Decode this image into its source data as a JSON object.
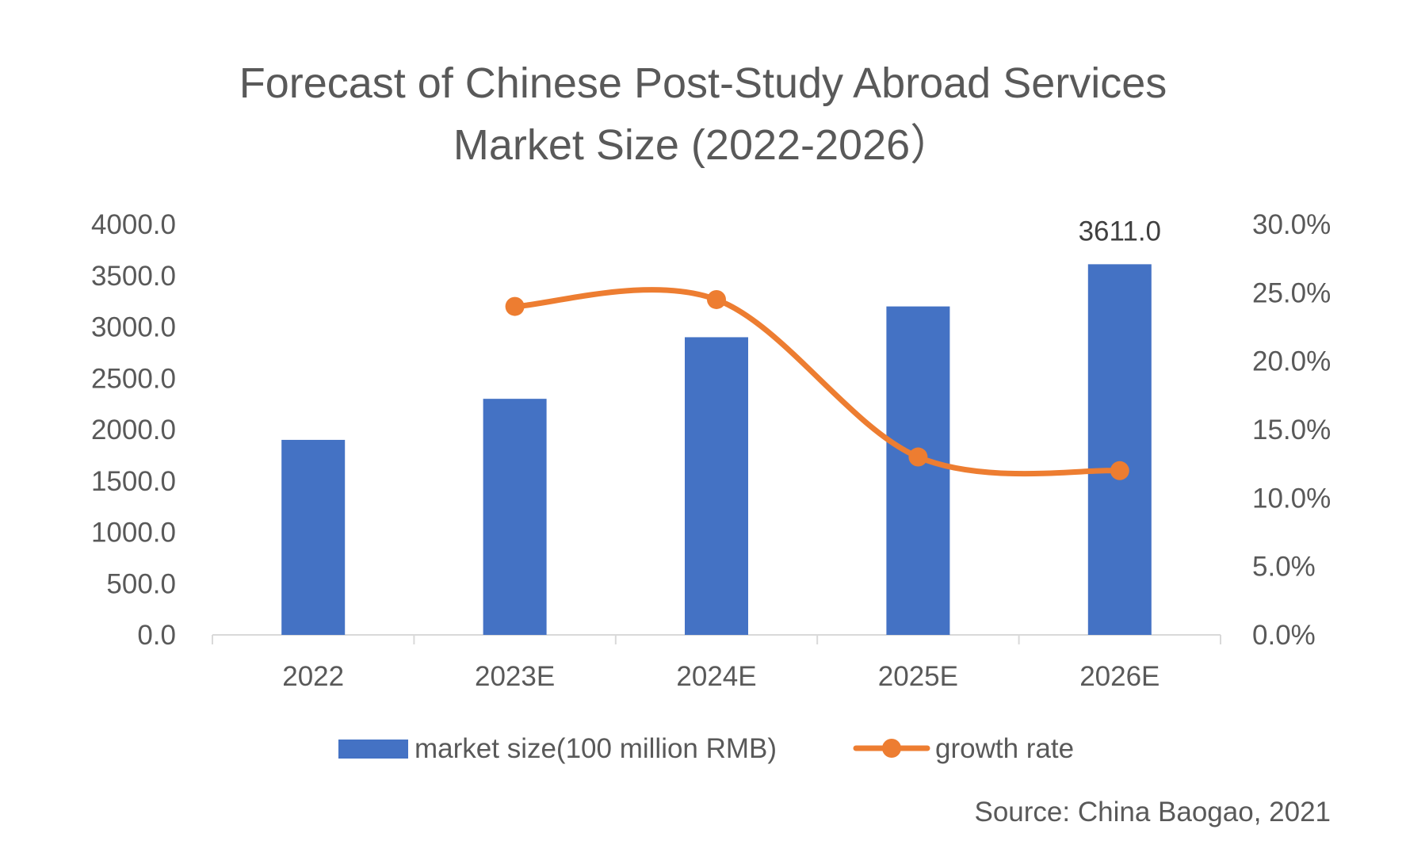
{
  "chart_data": {
    "type": "bar",
    "title": [
      "Forecast of Chinese Post-Study Abroad Services",
      "Market Size (2022-2026）"
    ],
    "categories": [
      "2022",
      "2023E",
      "2024E",
      "2025E",
      "2026E"
    ],
    "series": [
      {
        "name": "market size(100 million RMB)",
        "type": "bar",
        "axis": "left",
        "color": "#4472C4",
        "values": [
          1900,
          2300,
          2900,
          3200,
          3611
        ]
      },
      {
        "name": "growth rate",
        "type": "line",
        "axis": "right",
        "color": "#ED7D31",
        "values": [
          null,
          0.24,
          0.245,
          0.13,
          0.12
        ]
      }
    ],
    "data_labels": [
      {
        "series": 0,
        "index": 4,
        "text": "3611.0"
      }
    ],
    "y_left": {
      "range": [
        0,
        4000
      ],
      "ticks": [
        "0.0",
        "500.0",
        "1000.0",
        "1500.0",
        "2000.0",
        "2500.0",
        "3000.0",
        "3500.0",
        "4000.0"
      ]
    },
    "y_right": {
      "range": [
        0,
        0.3
      ],
      "ticks": [
        "0.0%",
        "5.0%",
        "10.0%",
        "15.0%",
        "20.0%",
        "25.0%",
        "30.0%"
      ]
    },
    "grid": false,
    "legend": "bottom",
    "source": "Source: China Baogao, 2021"
  }
}
